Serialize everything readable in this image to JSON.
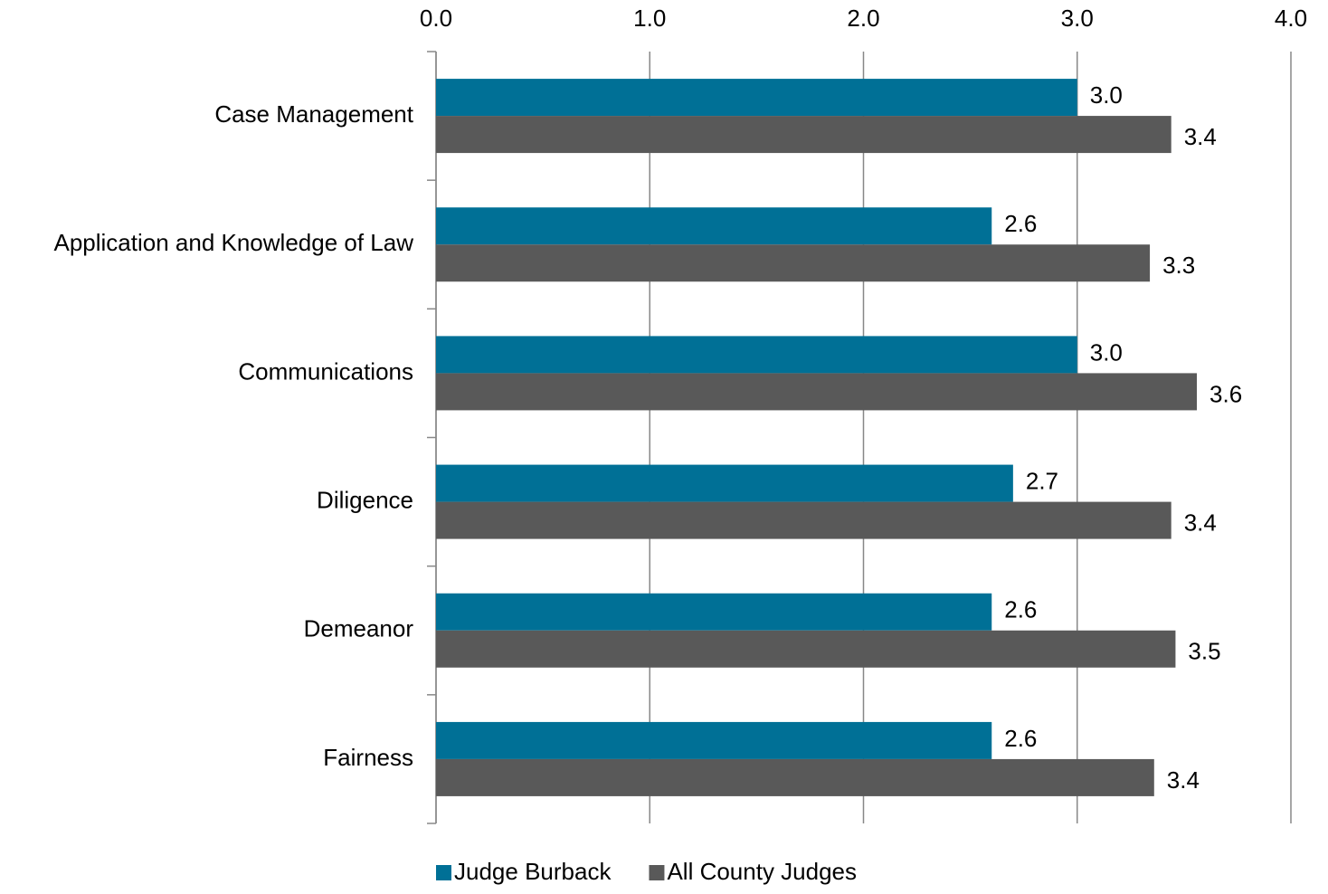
{
  "chart_data": {
    "type": "bar",
    "orientation": "horizontal",
    "categories": [
      "Case Management",
      "Application and Knowledge of Law",
      "Communications",
      "Diligence",
      "Demeanor",
      "Fairness"
    ],
    "series": [
      {
        "name": "Judge Burback",
        "color": "#007096",
        "values": [
          3.0,
          2.6,
          3.0,
          2.7,
          2.6,
          2.6
        ],
        "value_labels": [
          "3.0",
          "2.6",
          "3.0",
          "2.7",
          "2.6",
          "2.6"
        ]
      },
      {
        "name": "All County Judges",
        "color": "#595959",
        "values": [
          3.44,
          3.34,
          3.56,
          3.44,
          3.46,
          3.36
        ],
        "value_labels": [
          "3.4",
          "3.3",
          "3.6",
          "3.4",
          "3.5",
          "3.4"
        ]
      }
    ],
    "xlim": [
      0,
      4
    ],
    "xticks": [
      {
        "value": 0,
        "label": "0.0"
      },
      {
        "value": 1,
        "label": "1.0"
      },
      {
        "value": 2,
        "label": "2.0"
      },
      {
        "value": 3,
        "label": "3.0"
      },
      {
        "value": 4,
        "label": "4.0"
      }
    ],
    "grid": true,
    "legend": "bottom"
  }
}
